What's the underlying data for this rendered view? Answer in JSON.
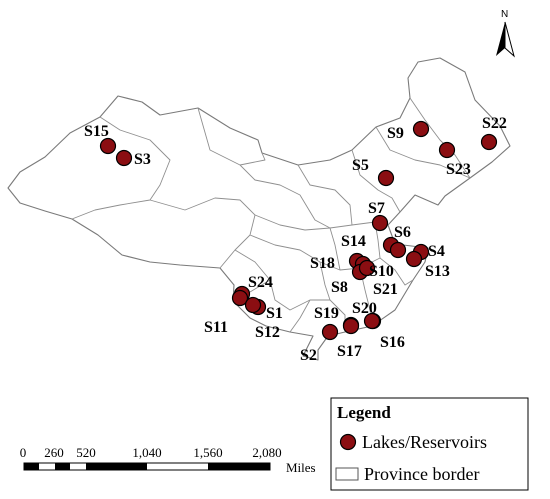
{
  "north_label": "N",
  "dot_color": "#8b0e12",
  "sites": [
    {
      "id": "S15"
    },
    {
      "id": "S3"
    },
    {
      "id": "S9"
    },
    {
      "id": "S22"
    },
    {
      "id": "S23"
    },
    {
      "id": "S5"
    },
    {
      "id": "S7"
    },
    {
      "id": "S6"
    },
    {
      "id": "S14"
    },
    {
      "id": "S4"
    },
    {
      "id": "S18"
    },
    {
      "id": "S10"
    },
    {
      "id": "S13"
    },
    {
      "id": "S8"
    },
    {
      "id": "S21"
    },
    {
      "id": "S24"
    },
    {
      "id": "S1"
    },
    {
      "id": "S11"
    },
    {
      "id": "S12"
    },
    {
      "id": "S20"
    },
    {
      "id": "S19"
    },
    {
      "id": "S16"
    },
    {
      "id": "S17"
    },
    {
      "id": "S2"
    }
  ],
  "scale_bar": {
    "ticks": [
      "0",
      "260",
      "520",
      "1,040",
      "1,560",
      "2,080"
    ],
    "unit": "Miles"
  },
  "legend": {
    "title": "Legend",
    "items": [
      {
        "label": "Lakes/Reservoirs",
        "symbol": "filled-circle"
      },
      {
        "label": "Province border",
        "symbol": "outline-rectangle"
      }
    ]
  }
}
